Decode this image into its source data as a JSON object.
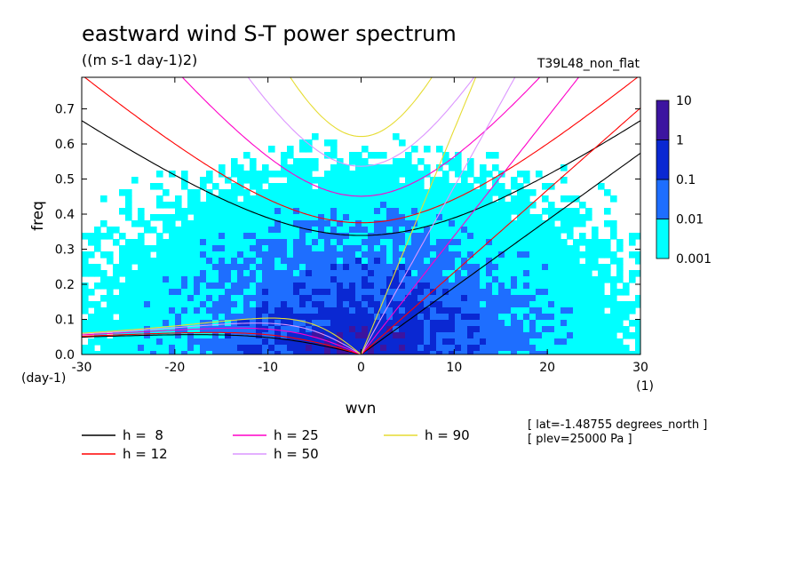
{
  "chart_data": {
    "type": "heatmap",
    "title": "eastward wind S-T power spectrum",
    "subtitle": "((m s-1 day-1)2)",
    "run_label": "T39L48_non_flat",
    "xlabel": "wvn",
    "ylabel": "freq",
    "x_unit": "(1)",
    "y_unit": "(day-1)",
    "xlim": [
      -30,
      30
    ],
    "ylim": [
      0,
      0.79
    ],
    "x_ticks": [
      -30,
      -20,
      -10,
      0,
      10,
      20,
      30
    ],
    "x_tick_labels": [
      "-30",
      "-20",
      "-10",
      "0",
      "10",
      "20",
      "30"
    ],
    "y_ticks": [
      0,
      0.1,
      0.2,
      0.3,
      0.4,
      0.5,
      0.6,
      0.7
    ],
    "y_tick_labels": [
      "0.0",
      "0.1",
      "0.2",
      "0.3",
      "0.4",
      "0.5",
      "0.6",
      "0.7"
    ],
    "colorbar": {
      "levels": [
        "0.001",
        "0.01",
        "0.1",
        "1",
        "10"
      ],
      "colors": [
        "#00ffff",
        "#1e6eff",
        "#0a28d2",
        "#3c14a0"
      ]
    },
    "series": [
      {
        "name": "h =  8",
        "h": 8,
        "color": "#000000"
      },
      {
        "name": "h = 12",
        "h": 12,
        "color": "#ff0000"
      },
      {
        "name": "h = 25",
        "h": 25,
        "color": "#ff00c8"
      },
      {
        "name": "h = 50",
        "h": 50,
        "color": "#dc96ff"
      },
      {
        "name": "h = 90",
        "h": 90,
        "color": "#e6dc32"
      }
    ],
    "annotations": [
      "[ lat=-1.48755 degrees_north ]",
      "[ plev=25000 Pa ]"
    ]
  }
}
